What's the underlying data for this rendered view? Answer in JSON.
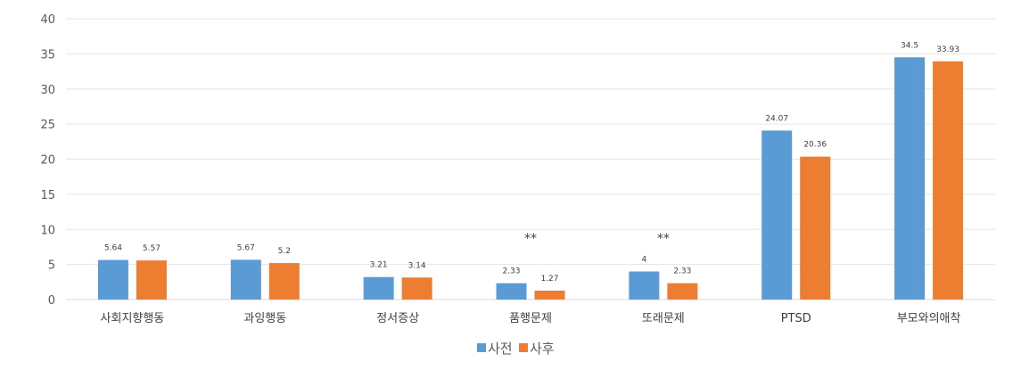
{
  "chart_data": {
    "type": "bar",
    "categories": [
      "사회지향행동",
      "과잉행동",
      "정서증상",
      "품행문제",
      "또래문제",
      "PTSD",
      "부모와의애착"
    ],
    "series": [
      {
        "name": "사전",
        "color": "#5B9BD5",
        "values": [
          5.64,
          5.67,
          3.21,
          2.33,
          4,
          24.07,
          34.5
        ],
        "labels": [
          "5.64",
          "5.67",
          "3.21",
          "2.33",
          "4",
          "24.07",
          "34.5"
        ]
      },
      {
        "name": "사후",
        "color": "#ED7D31",
        "values": [
          5.57,
          5.2,
          3.14,
          1.27,
          2.33,
          20.36,
          33.93
        ],
        "labels": [
          "5.57",
          "5.2",
          "3.14",
          "1.27",
          "2.33",
          "20.36",
          "33.93"
        ]
      }
    ],
    "annotations": [
      "",
      "",
      "",
      "**",
      "**",
      "",
      ""
    ],
    "ylim": [
      0,
      40
    ],
    "yticks": [
      0,
      5,
      10,
      15,
      20,
      25,
      30,
      35,
      40
    ],
    "grid": true,
    "legend": "bottom",
    "title": "",
    "xlabel": "",
    "ylabel": ""
  }
}
